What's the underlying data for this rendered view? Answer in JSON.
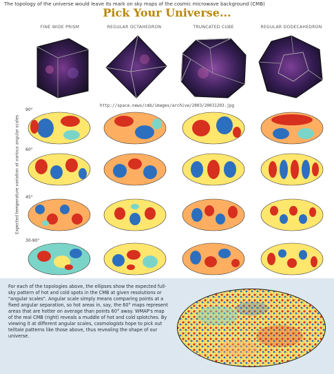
{
  "header": {
    "intro": "The topology of the universe would leave its mark on sky maps of the cosmic microwave background (CMB)",
    "title": "Pick Your Universe..."
  },
  "columns": [
    {
      "label": "FINE WIDE PRISM",
      "shape": "prism"
    },
    {
      "label": "REGULAR OCTAHEDRON",
      "shape": "octahedron"
    },
    {
      "label": "TRUNCATED CUBE",
      "shape": "truncated-cube"
    },
    {
      "label": "REGULAR DODECAHEDRON",
      "shape": "dodecahedron"
    }
  ],
  "url": "http://space.news/cmb/images/archive/2003/20031203.jpg",
  "y_axis_label": "Expected temperature variation at various angular scales",
  "rows": [
    {
      "label": "90°"
    },
    {
      "label": "60°"
    },
    {
      "label": "45°"
    },
    {
      "label": "30-90°"
    }
  ],
  "caption": "For each of the topologies above, the ellipses show the expected full-sky pattern of hot and cold spots in the CMB at given resolutions or \"angular scales\". Angular scale simply means comparing points at a fixed angular separation, so hot areas in, say, the 60° maps represent areas that are hotter on average than points 60° away. WMAP's map of the real CMB (right) reveals a muddle of hot and cold splotches. By viewing it at different angular scales, cosmologists hope to pick out telltale patterns like those above, thus revealing the shape of our universe.",
  "colors": {
    "hot": "#d7301f",
    "warm": "#fdae61",
    "neutral": "#ffe66d",
    "cool": "#7ad5c8",
    "cold": "#2c6fbf",
    "title": "#b8860b",
    "panel": "#dde7ef"
  }
}
